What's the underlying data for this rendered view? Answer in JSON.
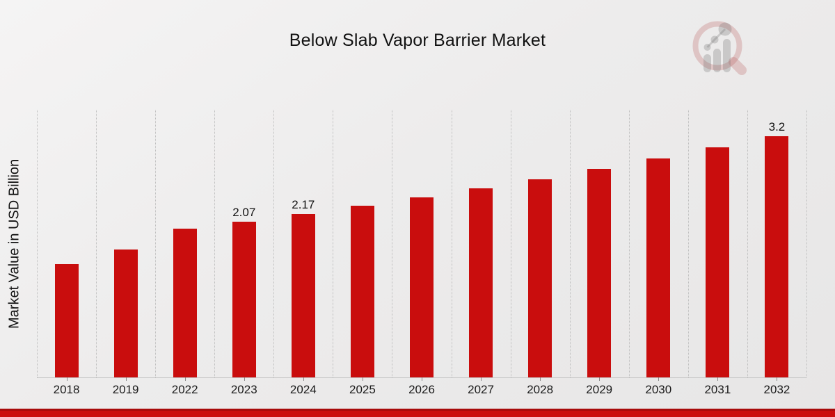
{
  "chart_data": {
    "type": "bar",
    "title": "Below Slab Vapor Barrier Market",
    "xlabel": "",
    "ylabel": "Market Value in USD Billion",
    "categories": [
      "2018",
      "2019",
      "2022",
      "2023",
      "2024",
      "2025",
      "2026",
      "2027",
      "2028",
      "2029",
      "2030",
      "2031",
      "2032"
    ],
    "values": [
      1.5,
      1.7,
      1.97,
      2.07,
      2.17,
      2.28,
      2.39,
      2.51,
      2.63,
      2.77,
      2.9,
      3.05,
      3.2
    ],
    "bar_labels": [
      "",
      "",
      "",
      "2.07",
      "2.17",
      "",
      "",
      "",
      "",
      "",
      "",
      "",
      "3.2"
    ],
    "ylim": [
      0,
      3.55
    ],
    "grid": "vertical-dotted",
    "legend": "none",
    "bar_color": "#C90D0D"
  },
  "branding": {
    "logo_icon": "magnifier-bar-chart-logo"
  },
  "colors": {
    "bar": "#C90D0D",
    "ribbon": "#CC0D0D",
    "ribbon_edge": "#A80B0B",
    "gridline": "#BDBDBD",
    "axis_line": "#C6C6C6",
    "logo_pink": "rgba(190,105,105,0.30)",
    "logo_gray": "rgba(110,110,110,0.28)"
  }
}
